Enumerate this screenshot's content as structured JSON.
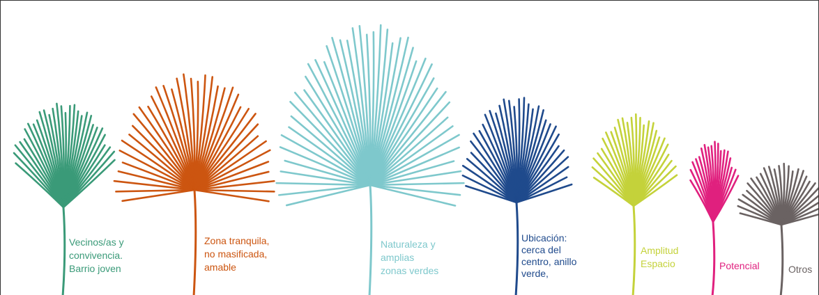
{
  "items": [
    {
      "lines": [
        "Vecinos/as y",
        "convivencia.",
        "Barrio joven"
      ],
      "color": "#3a9a78"
    },
    {
      "lines": [
        "Zona tranquila,",
        "no masificada,",
        "amable"
      ],
      "color": "#cc5510"
    },
    {
      "lines": [
        "Naturaleza y",
        "amplias",
        "zonas verdes"
      ],
      "color": "#7ec8cc"
    },
    {
      "lines": [
        "Ubicación:",
        "cerca del",
        "centro, anillo",
        "verde,"
      ],
      "color": "#1f4a8c"
    },
    {
      "lines": [
        "Amplitud",
        "Espacio"
      ],
      "color": "#c4d23a"
    },
    {
      "lines": [
        "Potencial"
      ],
      "color": "#e0207e"
    },
    {
      "lines": [
        "Otros"
      ],
      "color": "#6a6262"
    }
  ]
}
